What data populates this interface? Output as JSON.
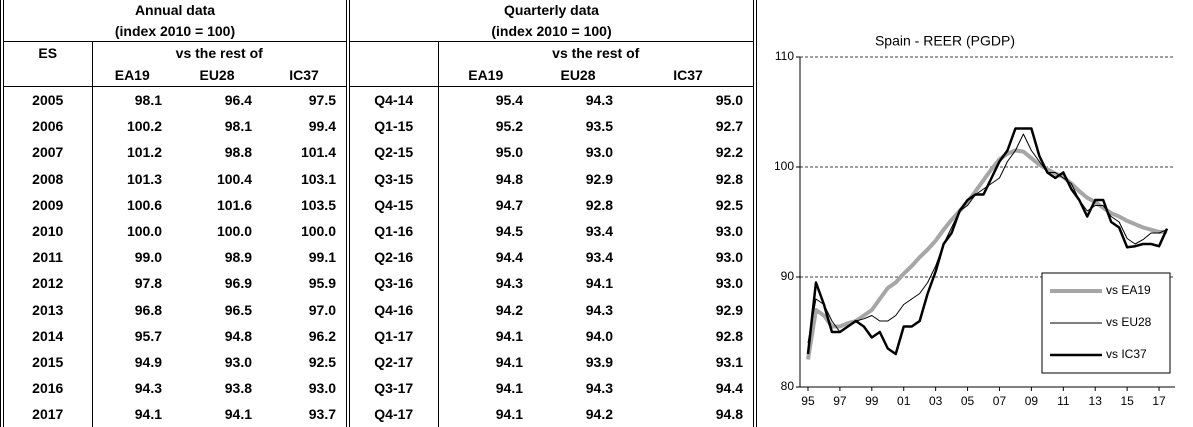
{
  "table": {
    "groups": [
      {
        "title": "Annual data",
        "subtitle": "(index 2010 = 100)",
        "vs": "vs the rest of",
        "columns": [
          "EA19",
          "EU28",
          "IC37"
        ]
      },
      {
        "title": "Quarterly data",
        "subtitle": "(index 2010 = 100)",
        "vs": "vs the rest of",
        "columns": [
          "EA19",
          "EU28",
          "IC37"
        ]
      }
    ],
    "corner": "ES",
    "rows": [
      [
        "2005",
        "98.1",
        "96.4",
        "97.5",
        "Q4-14",
        "95.4",
        "94.3",
        "95.0"
      ],
      [
        "2006",
        "100.2",
        "98.1",
        "99.4",
        "Q1-15",
        "95.2",
        "93.5",
        "92.7"
      ],
      [
        "2007",
        "101.2",
        "98.8",
        "101.4",
        "Q2-15",
        "95.0",
        "93.0",
        "92.2"
      ],
      [
        "2008",
        "101.3",
        "100.4",
        "103.1",
        "Q3-15",
        "94.8",
        "92.9",
        "92.8"
      ],
      [
        "2009",
        "100.6",
        "101.6",
        "103.5",
        "Q4-15",
        "94.7",
        "92.8",
        "92.5"
      ],
      [
        "2010",
        "100.0",
        "100.0",
        "100.0",
        "Q1-16",
        "94.5",
        "93.4",
        "93.0"
      ],
      [
        "2011",
        "99.0",
        "98.9",
        "99.1",
        "Q2-16",
        "94.4",
        "93.4",
        "93.0"
      ],
      [
        "2012",
        "97.8",
        "96.9",
        "95.9",
        "Q3-16",
        "94.3",
        "94.1",
        "93.0"
      ],
      [
        "2013",
        "96.8",
        "96.5",
        "97.0",
        "Q4-16",
        "94.2",
        "94.3",
        "92.9"
      ],
      [
        "2014",
        "95.7",
        "94.8",
        "96.2",
        "Q1-17",
        "94.1",
        "94.0",
        "92.8"
      ],
      [
        "2015",
        "94.9",
        "93.0",
        "92.5",
        "Q2-17",
        "94.1",
        "93.9",
        "93.1"
      ],
      [
        "2016",
        "94.3",
        "93.8",
        "93.0",
        "Q3-17",
        "94.1",
        "94.3",
        "94.4"
      ],
      [
        "2017",
        "94.1",
        "94.1",
        "93.7",
        "Q4-17",
        "94.1",
        "94.2",
        "94.8"
      ]
    ]
  },
  "chart_data": {
    "type": "line",
    "title": "Spain - REER (PGDP)",
    "x": [
      1995,
      1995.5,
      1996,
      1996.5,
      1997,
      1997.5,
      1998,
      1998.5,
      1999,
      1999.5,
      2000,
      2000.5,
      2001,
      2001.5,
      2002,
      2002.5,
      2003,
      2003.5,
      2004,
      2004.5,
      2005,
      2005.5,
      2006,
      2006.5,
      2007,
      2007.5,
      2008,
      2008.5,
      2009,
      2009.5,
      2010,
      2010.5,
      2011,
      2011.5,
      2012,
      2012.5,
      2013,
      2013.5,
      2014,
      2014.5,
      2015,
      2015.5,
      2016,
      2016.5,
      2017,
      2017.5
    ],
    "xlim": [
      1994.5,
      2018
    ],
    "xticks": [
      {
        "value": 1995,
        "label": "95"
      },
      {
        "value": 1997,
        "label": "97"
      },
      {
        "value": 1999,
        "label": "99"
      },
      {
        "value": 2001,
        "label": "01"
      },
      {
        "value": 2003,
        "label": "03"
      },
      {
        "value": 2005,
        "label": "05"
      },
      {
        "value": 2007,
        "label": "07"
      },
      {
        "value": 2009,
        "label": "09"
      },
      {
        "value": 2011,
        "label": "11"
      },
      {
        "value": 2013,
        "label": "13"
      },
      {
        "value": 2015,
        "label": "15"
      },
      {
        "value": 2017,
        "label": "17"
      }
    ],
    "ylim": [
      80,
      110
    ],
    "yticks": [
      80,
      90,
      100,
      110
    ],
    "grid": true,
    "legend": "lower right",
    "series": [
      {
        "name": "vs EA19",
        "color": "#a6a6a6",
        "width": 4,
        "values": [
          82.5,
          87,
          86.5,
          85.5,
          85.5,
          85.8,
          86,
          86.5,
          87,
          88,
          89,
          89.5,
          90.3,
          91,
          91.8,
          92.5,
          93.3,
          94.3,
          95.2,
          96,
          96.8,
          97.8,
          98.8,
          99.8,
          100.7,
          101.2,
          101.5,
          101.4,
          100.8,
          100.2,
          99.8,
          99.4,
          99.1,
          98.5,
          97.8,
          97.2,
          96.8,
          96.3,
          95.8,
          95.5,
          95.1,
          94.8,
          94.5,
          94.3,
          94.1,
          94.1
        ]
      },
      {
        "name": "vs EU28",
        "color": "#000000",
        "width": 1,
        "values": [
          84,
          88,
          87.5,
          86,
          85,
          85.5,
          86,
          86.2,
          86.5,
          86,
          86,
          86.5,
          87.5,
          88,
          88.5,
          89.5,
          91,
          93,
          94.5,
          96,
          96.5,
          97.5,
          98,
          98.5,
          99,
          100.5,
          101.5,
          103,
          101.5,
          100.5,
          99.5,
          99.5,
          99,
          98.5,
          97,
          96,
          96.5,
          96.5,
          95.5,
          95,
          93.5,
          93,
          93.4,
          94,
          94,
          94.3
        ]
      },
      {
        "name": "vs IC37",
        "color": "#000000",
        "width": 2.5,
        "values": [
          83,
          89.5,
          87.5,
          85,
          85,
          85.5,
          86,
          85.5,
          84.5,
          85,
          83.5,
          83,
          85.5,
          85.5,
          86,
          88.5,
          90.5,
          93,
          94,
          96,
          97,
          97.5,
          97.5,
          99,
          100.5,
          101.5,
          103.5,
          103.5,
          103.5,
          101,
          99.5,
          99,
          99.5,
          98,
          97,
          95.5,
          97,
          97,
          95,
          94.5,
          92.7,
          92.8,
          93,
          93,
          92.8,
          94.4
        ]
      }
    ]
  }
}
